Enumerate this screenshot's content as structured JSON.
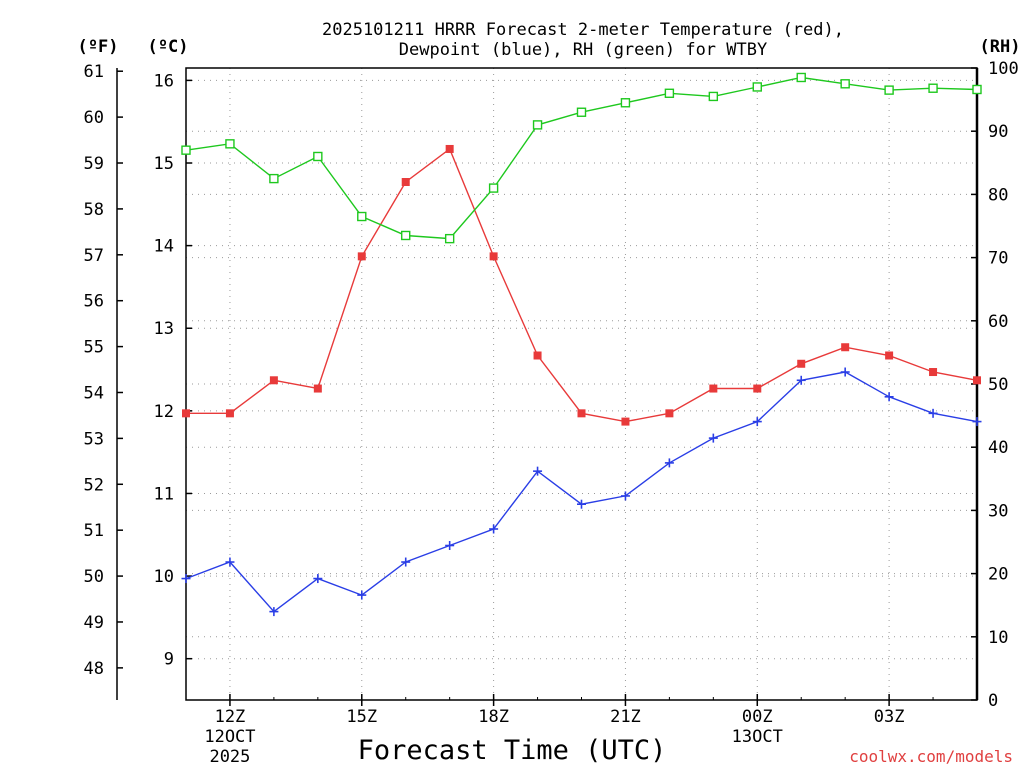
{
  "chart_data": {
    "type": "line",
    "title_lines": [
      "2025101211 HRRR Forecast 2-meter Temperature (red),",
      "Dewpoint (blue), RH (green) for WTBY"
    ],
    "xlabel": "Forecast Time (UTC)",
    "credit": "coolwx.com/models",
    "units": {
      "fahrenheit": "(ºF)",
      "celsius": "(ºC)",
      "rh": "(RH)"
    },
    "x": [
      11,
      12,
      13,
      14,
      15,
      16,
      17,
      18,
      19,
      20,
      21,
      22,
      23,
      24,
      25,
      26,
      27,
      28,
      29
    ],
    "xlim": [
      11,
      29
    ],
    "x_ticks": [
      {
        "x": 12,
        "hour": "12Z",
        "date": "12OCT",
        "year": "2025"
      },
      {
        "x": 15,
        "hour": "15Z",
        "date": "",
        "year": ""
      },
      {
        "x": 18,
        "hour": "18Z",
        "date": "",
        "year": ""
      },
      {
        "x": 21,
        "hour": "21Z",
        "date": "",
        "year": ""
      },
      {
        "x": 24,
        "hour": "00Z",
        "date": "13OCT",
        "year": ""
      },
      {
        "x": 27,
        "hour": "03Z",
        "date": "",
        "year": ""
      }
    ],
    "celsius_axis": {
      "ylim": [
        8.5,
        16.15
      ],
      "ticks": [
        9,
        10,
        11,
        12,
        13,
        14,
        15,
        16
      ]
    },
    "fahrenheit_axis": {
      "ticks": [
        48,
        49,
        50,
        51,
        52,
        53,
        54,
        55,
        56,
        57,
        58,
        59,
        60,
        61
      ]
    },
    "rh_axis": {
      "ylim": [
        0,
        100
      ],
      "ticks": [
        0,
        10,
        20,
        30,
        40,
        50,
        60,
        70,
        80,
        90,
        100
      ]
    },
    "series": [
      {
        "name": "Temperature",
        "axis": "celsius",
        "color": "#e83a3a",
        "marker": "filled-square",
        "values": [
          11.97,
          11.97,
          12.37,
          12.27,
          13.87,
          14.77,
          15.17,
          13.87,
          12.67,
          11.97,
          11.87,
          11.97,
          12.27,
          12.27,
          12.57,
          12.77,
          12.67,
          12.47,
          12.37
        ]
      },
      {
        "name": "Dewpoint",
        "axis": "celsius",
        "color": "#2a3ee6",
        "marker": "plus",
        "values": [
          9.97,
          10.17,
          9.57,
          9.97,
          9.77,
          10.17,
          10.37,
          10.57,
          11.27,
          10.87,
          10.97,
          11.37,
          11.67,
          11.87,
          12.37,
          12.47,
          12.17,
          11.97,
          11.87
        ]
      },
      {
        "name": "RH",
        "axis": "rh",
        "color": "#1ec81e",
        "marker": "open-square",
        "values": [
          87,
          88,
          82.5,
          86,
          76.5,
          73.5,
          73,
          81,
          91,
          93,
          94.5,
          96,
          95.5,
          97,
          98.5,
          97.5,
          96.5,
          96.8,
          96.6
        ]
      }
    ]
  }
}
